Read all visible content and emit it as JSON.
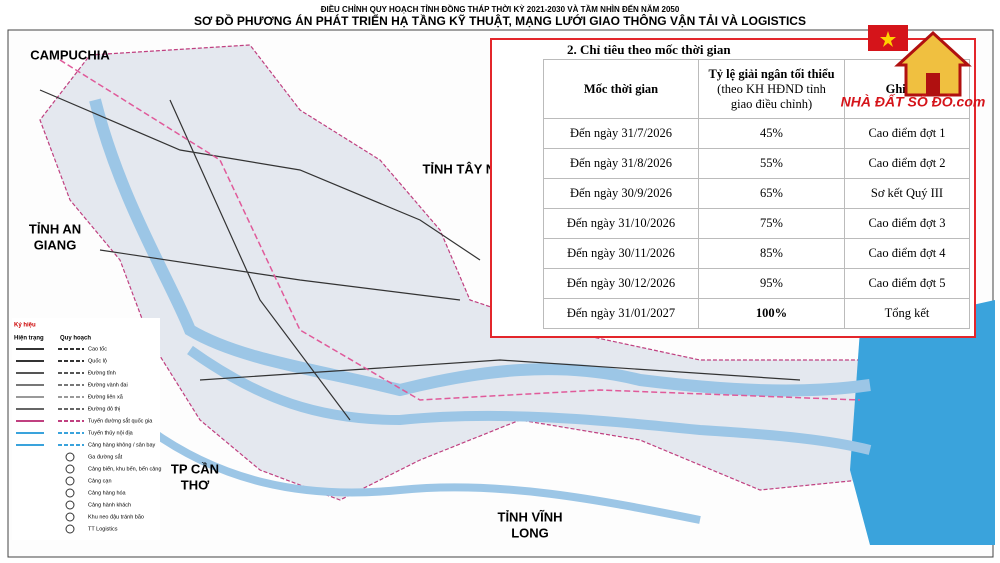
{
  "header": {
    "title_1": "ĐIỀU CHỈNH QUY HOẠCH TỈNH ĐỒNG THÁP THỜI KỲ 2021-2030 VÀ TẦM NHÌN ĐẾN NĂM 2050",
    "title_2": "SƠ ĐỒ PHƯƠNG ÁN PHÁT TRIỂN HẠ TẦNG KỸ THUẬT, MẠNG LƯỚI GIAO THÔNG VẬN TẢI VÀ LOGISTICS"
  },
  "map_labels": [
    {
      "lines": [
        "CAMPUCHIA"
      ]
    },
    {
      "lines": [
        "TỈNH TÂY NINH"
      ]
    },
    {
      "lines": [
        "TỈNH AN",
        "GIANG"
      ]
    },
    {
      "lines": [
        "TP CẦN",
        "THƠ"
      ]
    },
    {
      "lines": [
        "TỈNH VĨNH",
        "LONG"
      ]
    }
  ],
  "legend": {
    "title": "Ký hiệu",
    "current": "Hiện trạng",
    "planned": "Quy hoạch",
    "items": [
      "Cao tốc",
      "Quốc lộ",
      "Đường tỉnh",
      "Đường vành đai",
      "Đường liên xã",
      "Đường đô thị",
      "Tuyến đường sắt quốc gia",
      "Tuyến thủy nội địa",
      "Cảng hàng không / sân bay",
      "Ga đường sắt",
      "Cảng biển, khu bến, bến cảng",
      "Cảng cạn",
      "Cảng hàng hóa",
      "Cảng hành khách",
      "Khu neo đậu tránh bão",
      "TT Logistics"
    ]
  },
  "table": {
    "heading": "2. Chỉ tiêu theo mốc thời gian",
    "columns": [
      "Mốc thời gian",
      "Tỷ lệ giải ngân tối thiểu",
      "Ghi chú"
    ],
    "columns_note": "(theo KH HĐND tỉnh giao điều chỉnh)",
    "rows": [
      [
        "Đến ngày 31/7/2026",
        "45%",
        "Cao điểm đợt 1"
      ],
      [
        "Đến ngày 31/8/2026",
        "55%",
        "Cao điểm đợt 2"
      ],
      [
        "Đến ngày 30/9/2026",
        "65%",
        "Sơ kết Quý III"
      ],
      [
        "Đến ngày 31/10/2026",
        "75%",
        "Cao điểm đợt 3"
      ],
      [
        "Đến ngày 30/11/2026",
        "85%",
        "Cao điểm đợt 4"
      ],
      [
        "Đến ngày 30/12/2026",
        "95%",
        "Cao điểm đợt 5"
      ],
      [
        "Đến ngày 31/01/2027",
        "100%",
        "Tổng kết"
      ]
    ]
  },
  "logo": "NHÀ ĐẤT SỔ ĐỎ.com"
}
